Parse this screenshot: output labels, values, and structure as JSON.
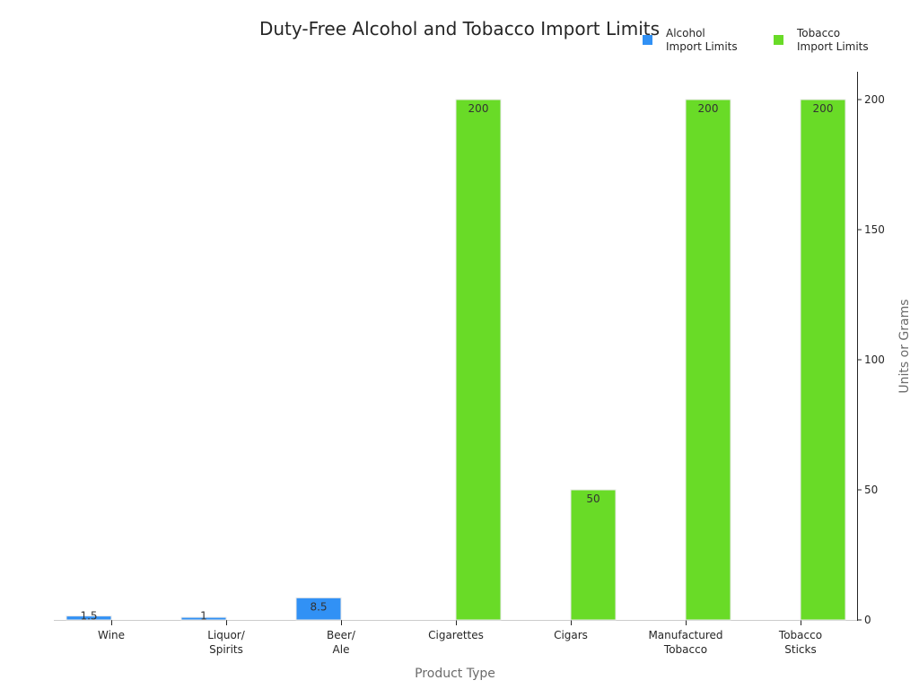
{
  "chart_data": {
    "type": "bar",
    "title": "Duty-Free Alcohol and Tobacco Import Limits",
    "xlabel": "Product Type",
    "ylabel": "Units or Grams",
    "ylim": [
      0,
      210
    ],
    "yticks": [
      0,
      50,
      100,
      150,
      200
    ],
    "y_axis_position": "right",
    "grid": false,
    "legend_position": "top-right",
    "categories": [
      "Wine",
      "Liquor/\nSpirits",
      "Beer/\nAle",
      "Cigarettes",
      "Cigars",
      "Manufactured\nTobacco",
      "Tobacco\nSticks"
    ],
    "series": [
      {
        "name": "Alcohol\nImport Limits",
        "color": "#3191f5",
        "values": [
          1.5,
          1,
          8.5,
          0,
          0,
          0,
          0
        ]
      },
      {
        "name": "Tobacco\nImport Limits",
        "color": "#69db27",
        "values": [
          0,
          0,
          0,
          200,
          50,
          200,
          200
        ]
      }
    ],
    "bar_labels": [
      "1.5",
      "1",
      "8.5",
      "200",
      "50",
      "200",
      "200"
    ]
  }
}
